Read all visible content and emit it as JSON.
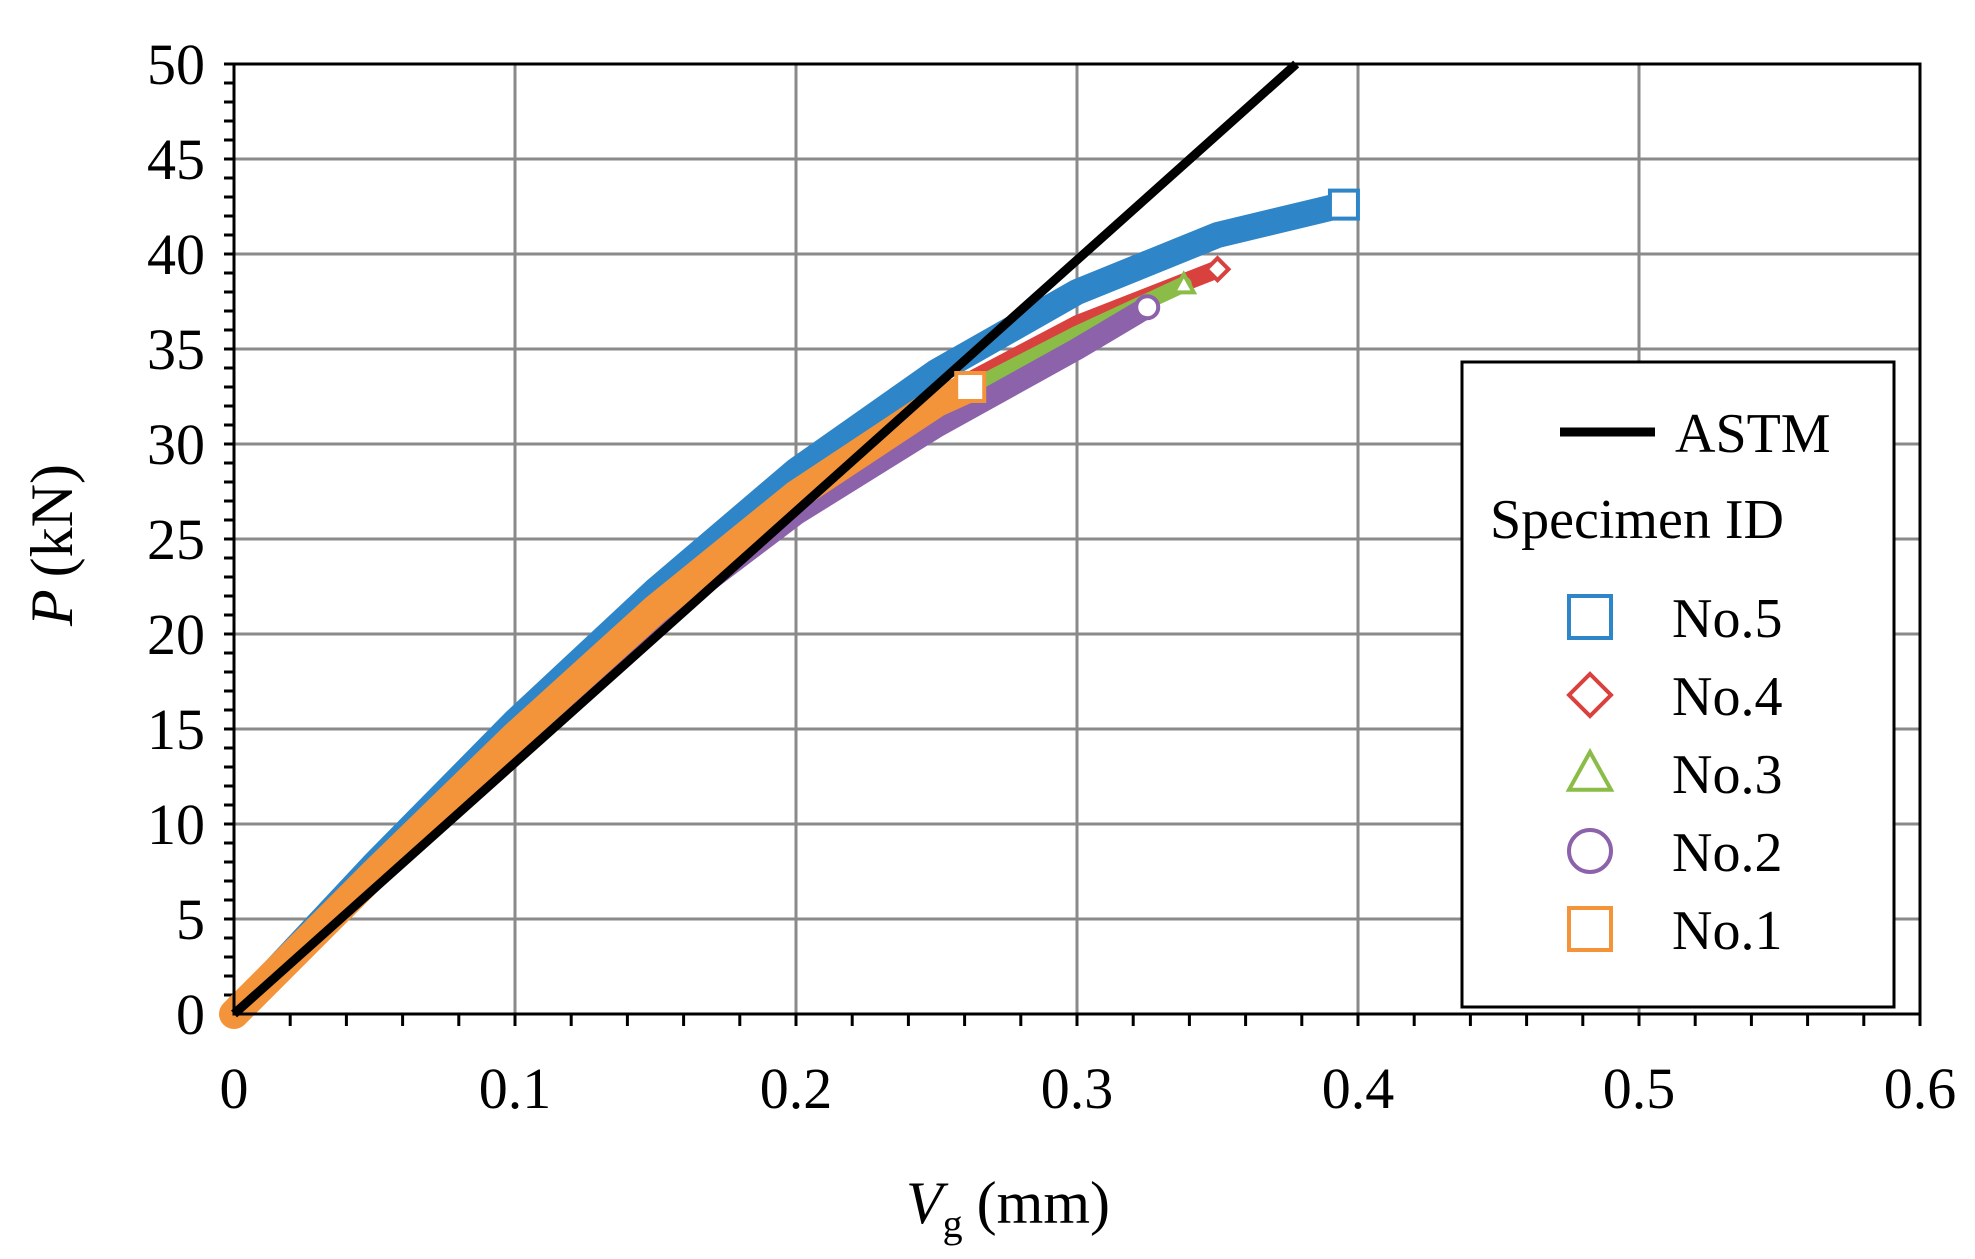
{
  "chart_data": {
    "type": "line",
    "title": "",
    "xlabel_main": "V",
    "xlabel_sub": "g",
    "xlabel_unit": "(mm)",
    "ylabel_main": "P",
    "ylabel_unit": "(kN)",
    "xlim": [
      0,
      0.6
    ],
    "ylim": [
      0,
      50
    ],
    "x_ticks": [
      0,
      0.1,
      0.2,
      0.3,
      0.4,
      0.5,
      0.6
    ],
    "x_tick_labels": [
      "0",
      "0.1",
      "0.2",
      "0.3",
      "0.4",
      "0.5",
      "0.6"
    ],
    "y_ticks": [
      0,
      5,
      10,
      15,
      20,
      25,
      30,
      35,
      40,
      45,
      50
    ],
    "y_tick_labels": [
      "0",
      "5",
      "10",
      "15",
      "20",
      "25",
      "30",
      "35",
      "40",
      "45",
      "50"
    ],
    "grid": true,
    "legend_position": "right",
    "legend_heading": "Specimen ID",
    "reference": {
      "name": "ASTM",
      "color": "#000000",
      "x": [
        0,
        0.378
      ],
      "y": [
        0,
        50
      ]
    },
    "series": [
      {
        "name": "No.5",
        "marker": "square",
        "color": "#2E86C8",
        "x": [
          0,
          0.05,
          0.1,
          0.15,
          0.2,
          0.25,
          0.3,
          0.35,
          0.395
        ],
        "y": [
          0,
          7.9,
          15.4,
          22.3,
          28.6,
          33.8,
          38.0,
          41.0,
          42.6
        ]
      },
      {
        "name": "No.4",
        "marker": "diamond",
        "color": "#D9413E",
        "x": [
          0,
          0.05,
          0.1,
          0.15,
          0.2,
          0.25,
          0.3,
          0.35
        ],
        "y": [
          0,
          7.7,
          15.0,
          21.7,
          27.6,
          32.4,
          36.3,
          39.2
        ]
      },
      {
        "name": "No.3",
        "marker": "triangle",
        "color": "#8BBC47",
        "x": [
          0,
          0.05,
          0.1,
          0.15,
          0.2,
          0.25,
          0.3,
          0.338
        ],
        "y": [
          0,
          7.6,
          14.8,
          21.4,
          27.2,
          32.0,
          35.8,
          38.4
        ]
      },
      {
        "name": "No.2",
        "marker": "circle",
        "color": "#8C62AA",
        "x": [
          0,
          0.05,
          0.1,
          0.15,
          0.2,
          0.25,
          0.3,
          0.325
        ],
        "y": [
          0,
          7.3,
          14.3,
          20.7,
          26.3,
          30.9,
          35.0,
          37.2
        ]
      },
      {
        "name": "No.1",
        "marker": "square",
        "color": "#F4943A",
        "x": [
          0,
          0.05,
          0.1,
          0.15,
          0.2,
          0.25,
          0.262
        ],
        "y": [
          0,
          7.4,
          14.6,
          21.3,
          27.3,
          32.2,
          33.0
        ]
      }
    ]
  }
}
